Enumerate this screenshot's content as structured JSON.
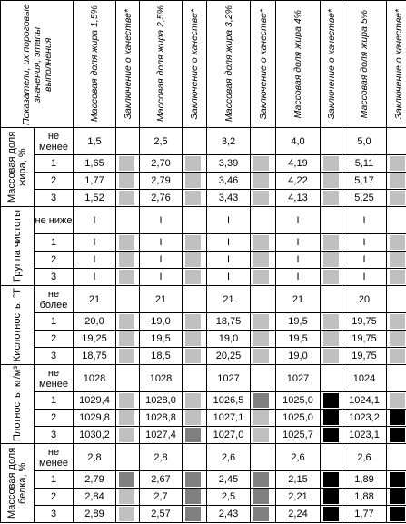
{
  "header": {
    "indicators": "Показатели, их пороговые значения, этапы выполнения",
    "columns": [
      "Массовая доля жира 1,5%",
      "Заключение о качестве*",
      "Массовая доля жира 2,5%",
      "Заключение о качестве*",
      "Массовая доля жира 3,2%",
      "Заключение о качестве*",
      "Массовая доля жира 4%",
      "Заключение о качестве*",
      "Массовая доля жира 5%",
      "Заключение о качестве*"
    ]
  },
  "groups": [
    {
      "label": "Массовая доля жира, %",
      "rows": [
        {
          "stage": "не менее",
          "values": [
            "1,5",
            "2,5",
            "3,2",
            "4,0",
            "5,0"
          ]
        },
        {
          "stage": "1",
          "values": [
            "1,65",
            "2,70",
            "3,39",
            "4,19",
            "5,11"
          ],
          "conclusions": [
            "#c0c0c0",
            "#c0c0c0",
            "#c0c0c0",
            "#c0c0c0",
            "#c0c0c0"
          ]
        },
        {
          "stage": "2",
          "values": [
            "1,77",
            "2,79",
            "3,46",
            "4,22",
            "5,17"
          ],
          "conclusions": [
            "#c0c0c0",
            "#c0c0c0",
            "#c0c0c0",
            "#c0c0c0",
            "#c0c0c0"
          ]
        },
        {
          "stage": "3",
          "values": [
            "1,52",
            "2,76",
            "3,43",
            "4,13",
            "5,25"
          ],
          "conclusions": [
            "#c0c0c0",
            "#c0c0c0",
            "#c0c0c0",
            "#c0c0c0",
            "#c0c0c0"
          ]
        }
      ]
    },
    {
      "label": "Группа чистоты",
      "rows": [
        {
          "stage": "не ниже",
          "values": [
            "I",
            "I",
            "I",
            "I",
            "I"
          ]
        },
        {
          "stage": "1",
          "values": [
            "I",
            "I",
            "I",
            "I",
            "I"
          ],
          "conclusions": [
            "#c0c0c0",
            "#c0c0c0",
            "#c0c0c0",
            "#c0c0c0",
            "#c0c0c0"
          ]
        },
        {
          "stage": "2",
          "values": [
            "I",
            "I",
            "I",
            "I",
            "I"
          ],
          "conclusions": [
            "#c0c0c0",
            "#c0c0c0",
            "#c0c0c0",
            "#c0c0c0",
            "#c0c0c0"
          ]
        },
        {
          "stage": "3",
          "values": [
            "I",
            "I",
            "I",
            "I",
            "I"
          ],
          "conclusions": [
            "#c0c0c0",
            "#c0c0c0",
            "#c0c0c0",
            "#c0c0c0",
            "#c0c0c0"
          ]
        }
      ]
    },
    {
      "label": "Кислотность, °Т",
      "rows": [
        {
          "stage": "не более",
          "values": [
            "21",
            "21",
            "21",
            "21",
            "20"
          ]
        },
        {
          "stage": "1",
          "values": [
            "20,0",
            "19,0",
            "18,75",
            "19,5",
            "19,75"
          ],
          "conclusions": [
            "#c0c0c0",
            "#c0c0c0",
            "#c0c0c0",
            "#c0c0c0",
            "#c0c0c0"
          ]
        },
        {
          "stage": "2",
          "values": [
            "19,25",
            "19,5",
            "19,0",
            "19,5",
            "19,75"
          ],
          "conclusions": [
            "#c0c0c0",
            "#c0c0c0",
            "#c0c0c0",
            "#c0c0c0",
            "#c0c0c0"
          ]
        },
        {
          "stage": "3",
          "values": [
            "18,75",
            "18,5",
            "20,25",
            "19,0",
            "19,75"
          ],
          "conclusions": [
            "#c0c0c0",
            "#c0c0c0",
            "#c0c0c0",
            "#c0c0c0",
            "#c0c0c0"
          ]
        }
      ]
    },
    {
      "label": "Плотность, кг/м³",
      "rows": [
        {
          "stage": "не менее",
          "values": [
            "1028",
            "1028",
            "1027",
            "1027",
            "1024"
          ]
        },
        {
          "stage": "1",
          "values": [
            "1029,4",
            "1028,0",
            "1026,5",
            "1025,0",
            "1024,1"
          ],
          "conclusions": [
            "#c0c0c0",
            "#c0c0c0",
            "#808080",
            "#000000",
            "#c0c0c0"
          ]
        },
        {
          "stage": "2",
          "values": [
            "1029,8",
            "1028,8",
            "1027,1",
            "1025,0",
            "1023,2"
          ],
          "conclusions": [
            "#c0c0c0",
            "#c0c0c0",
            "#c0c0c0",
            "#000000",
            "#000000"
          ]
        },
        {
          "stage": "3",
          "values": [
            "1030,2",
            "1027,4",
            "1027,0",
            "1025,7",
            "1023,1"
          ],
          "conclusions": [
            "#c0c0c0",
            "#808080",
            "#c0c0c0",
            "#000000",
            "#000000"
          ]
        }
      ]
    },
    {
      "label": "Массовая доля белка, %",
      "rows": [
        {
          "stage": "не менее",
          "values": [
            "2,8",
            "2,8",
            "2,6",
            "2,6",
            "2,6"
          ]
        },
        {
          "stage": "1",
          "values": [
            "2,79",
            "2,67",
            "2,45",
            "2,15",
            "1,89"
          ],
          "conclusions": [
            "#808080",
            "#808080",
            "#808080",
            "#000000",
            "#000000"
          ]
        },
        {
          "stage": "2",
          "values": [
            "2,84",
            "2,7",
            "2,5",
            "2,21",
            "1,88"
          ],
          "conclusions": [
            "#c0c0c0",
            "#808080",
            "#808080",
            "#000000",
            "#000000"
          ]
        },
        {
          "stage": "3",
          "values": [
            "2,89",
            "2,57",
            "2,43",
            "2,24",
            "1,77"
          ],
          "conclusions": [
            "#c0c0c0",
            "#808080",
            "#808080",
            "#000000",
            "#000000"
          ]
        }
      ]
    }
  ]
}
